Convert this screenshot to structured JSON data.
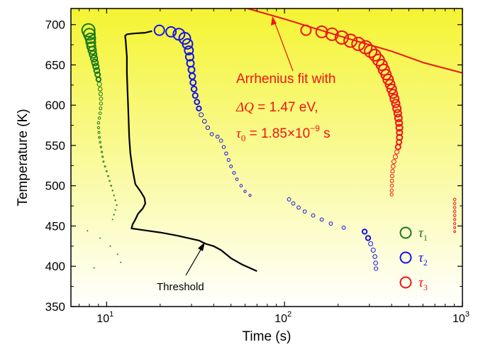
{
  "chart_data": {
    "type": "scatter",
    "xlabel": "Time (s)",
    "ylabel": "Temperature (K)",
    "xscale": "log",
    "xlim": [
      6.3,
      1000
    ],
    "ylim": [
      350,
      720
    ],
    "x_ticks": [
      10,
      100,
      1000
    ],
    "x_tick_labels": [
      {
        "base": "10",
        "exp": "1"
      },
      {
        "base": "10",
        "exp": "2"
      },
      {
        "base": "10",
        "exp": "3"
      }
    ],
    "y_ticks": [
      350,
      400,
      450,
      500,
      550,
      600,
      650,
      700
    ],
    "y_tick_labels": [
      "350",
      "400",
      "450",
      "500",
      "550",
      "600",
      "650",
      "700"
    ],
    "grid": false,
    "background_gradient": [
      "#f4f432",
      "#ffffff"
    ],
    "legend_position": "bottom-right",
    "series": [
      {
        "name": "τ1",
        "legend_symbol": "τ",
        "legend_sub": "1",
        "color": "#1a7a1a",
        "points": [
          [
            7.9,
            693,
            9
          ],
          [
            8.0,
            688,
            8
          ],
          [
            8.1,
            683,
            7
          ],
          [
            8.15,
            678,
            6.5
          ],
          [
            8.2,
            673,
            6
          ],
          [
            8.3,
            668,
            5.5
          ],
          [
            8.4,
            663,
            5
          ],
          [
            8.5,
            658,
            4.7
          ],
          [
            8.6,
            653,
            4.4
          ],
          [
            8.7,
            648,
            4.1
          ],
          [
            8.8,
            643,
            3.8
          ],
          [
            8.9,
            638,
            3.5
          ],
          [
            9.0,
            632,
            3.2
          ],
          [
            9.1,
            626,
            3.0
          ],
          [
            9.2,
            620,
            2.8
          ],
          [
            9.25,
            614,
            2.6
          ],
          [
            9.3,
            608,
            2.4
          ],
          [
            9.3,
            602,
            2.2
          ],
          [
            9.25,
            596,
            2.0
          ],
          [
            9.2,
            590,
            1.9
          ],
          [
            9.1,
            584,
            1.8
          ],
          [
            9.0,
            578,
            1.7
          ],
          [
            9.0,
            572,
            1.6
          ],
          [
            9.05,
            566,
            1.5
          ],
          [
            9.1,
            560,
            1.4
          ],
          [
            9.2,
            554,
            1.3
          ],
          [
            9.3,
            548,
            1.2
          ],
          [
            9.4,
            542,
            1.1
          ],
          [
            9.5,
            536,
            1.1
          ],
          [
            9.6,
            530,
            1.0
          ],
          [
            9.8,
            524,
            1.0
          ],
          [
            10.0,
            518,
            0.9
          ],
          [
            10.2,
            512,
            0.9
          ],
          [
            10.4,
            506,
            0.8
          ],
          [
            10.6,
            500,
            0.8
          ],
          [
            10.8,
            494,
            0.7
          ],
          [
            11.0,
            488,
            0.7
          ],
          [
            11.2,
            482,
            0.7
          ],
          [
            11.4,
            476,
            0.6
          ],
          [
            11.2,
            470,
            0.6
          ],
          [
            11.0,
            464,
            0.6
          ],
          [
            10.8,
            458,
            0.5
          ],
          [
            7.8,
            444,
            0.5
          ],
          [
            9.2,
            435,
            0.5
          ],
          [
            10.5,
            425,
            0.5
          ],
          [
            11.5,
            415,
            0.5
          ],
          [
            12.0,
            405,
            0.5
          ],
          [
            8.5,
            398,
            0.5
          ]
        ]
      },
      {
        "name": "τ2",
        "legend_symbol": "τ",
        "legend_sub": "2",
        "color": "#1414e6",
        "points": [
          [
            19.8,
            693,
            7
          ],
          [
            23.0,
            691,
            7
          ],
          [
            25.5,
            688,
            8
          ],
          [
            27.5,
            683,
            8
          ],
          [
            28.5,
            676,
            7
          ],
          [
            29.0,
            668,
            6
          ],
          [
            29.3,
            660,
            5.5
          ],
          [
            29.6,
            652,
            5
          ],
          [
            30.0,
            644,
            4.5
          ],
          [
            30.3,
            636,
            4.2
          ],
          [
            30.6,
            628,
            4.0
          ],
          [
            31.0,
            620,
            3.8
          ],
          [
            31.5,
            612,
            3.6
          ],
          [
            32.2,
            604,
            3.4
          ],
          [
            33.0,
            596,
            3.2
          ],
          [
            34.0,
            588,
            3.0
          ],
          [
            35.5,
            580,
            2.8
          ],
          [
            37.0,
            572,
            2.6
          ],
          [
            39.0,
            564,
            2.4
          ],
          [
            42.0,
            561,
            2.3
          ],
          [
            44.0,
            556,
            2.3
          ],
          [
            45.5,
            548,
            2.2
          ],
          [
            47.0,
            540,
            2.2
          ],
          [
            48.5,
            532,
            2.1
          ],
          [
            50.0,
            524,
            2.0
          ],
          [
            52.0,
            516,
            2.0
          ],
          [
            54.0,
            508,
            1.9
          ],
          [
            57.0,
            500,
            1.8
          ],
          [
            60.0,
            493,
            1.7
          ],
          [
            64.0,
            488,
            1.6
          ],
          [
            106,
            483,
            2.4
          ],
          [
            112,
            478,
            2.4
          ],
          [
            120,
            473,
            2.4
          ],
          [
            130,
            468,
            2.4
          ],
          [
            145,
            463,
            2.4
          ],
          [
            162,
            458,
            2.4
          ],
          [
            182,
            453,
            2.4
          ],
          [
            215,
            448,
            2.4
          ],
          [
            282,
            443,
            3.2
          ],
          [
            295,
            435,
            3.2
          ],
          [
            305,
            428,
            3.0
          ],
          [
            315,
            420,
            3.0
          ],
          [
            322,
            412,
            2.8
          ],
          [
            325,
            404,
            2.8
          ],
          [
            327,
            397,
            2.6
          ]
        ]
      },
      {
        "name": "τ3",
        "legend_symbol": "τ",
        "legend_sub": "3",
        "color": "#f01414",
        "points": [
          [
            132,
            693,
            7
          ],
          [
            162,
            691,
            8
          ],
          [
            185,
            688,
            8.5
          ],
          [
            210,
            684,
            9
          ],
          [
            235,
            680,
            9
          ],
          [
            260,
            676,
            9
          ],
          [
            285,
            672,
            9
          ],
          [
            305,
            667,
            8.5
          ],
          [
            322,
            662,
            8
          ],
          [
            338,
            656,
            8
          ],
          [
            352,
            650,
            7.5
          ],
          [
            362,
            644,
            7.5
          ],
          [
            372,
            638,
            7
          ],
          [
            382,
            632,
            7
          ],
          [
            392,
            626,
            6.5
          ],
          [
            400,
            620,
            6.5
          ],
          [
            408,
            614,
            6
          ],
          [
            415,
            608,
            6
          ],
          [
            422,
            602,
            5.5
          ],
          [
            428,
            596,
            5.5
          ],
          [
            433,
            590,
            5
          ],
          [
            437,
            584,
            5
          ],
          [
            440,
            578,
            4.5
          ],
          [
            442,
            572,
            4.5
          ],
          [
            443,
            566,
            4
          ],
          [
            443,
            560,
            4
          ],
          [
            440,
            554,
            3.5
          ],
          [
            435,
            548,
            3.5
          ],
          [
            428,
            542,
            3
          ],
          [
            420,
            536,
            3
          ],
          [
            412,
            530,
            3
          ],
          [
            408,
            524,
            2.8
          ],
          [
            405,
            518,
            2.6
          ],
          [
            403,
            512,
            2.5
          ],
          [
            402,
            506,
            2.4
          ],
          [
            401,
            500,
            2.3
          ],
          [
            400,
            494,
            2.2
          ],
          [
            400,
            489,
            2.1
          ],
          [
            905,
            483,
            1.8
          ],
          [
            905,
            478,
            1.8
          ],
          [
            905,
            473,
            1.8
          ],
          [
            905,
            468,
            1.8
          ],
          [
            905,
            463,
            1.8
          ],
          [
            905,
            458,
            1.6
          ],
          [
            905,
            453,
            1.6
          ],
          [
            905,
            448,
            1.5
          ],
          [
            905,
            443,
            1.4
          ]
        ]
      }
    ],
    "lines": [
      {
        "name": "Threshold",
        "color": "#000000",
        "points": [
          [
            18.0,
            692
          ],
          [
            16.5,
            690
          ],
          [
            14.2,
            689
          ],
          [
            13.0,
            688
          ],
          [
            12.7,
            686
          ],
          [
            12.8,
            680
          ],
          [
            13.0,
            660
          ],
          [
            13.0,
            640
          ],
          [
            13.1,
            620
          ],
          [
            13.2,
            600
          ],
          [
            13.3,
            580
          ],
          [
            13.4,
            560
          ],
          [
            13.6,
            540
          ],
          [
            14.0,
            520
          ],
          [
            14.5,
            502
          ],
          [
            15.6,
            492
          ],
          [
            16.3,
            485
          ],
          [
            16.5,
            478
          ],
          [
            16.0,
            472
          ],
          [
            15.0,
            465
          ],
          [
            14.5,
            458
          ],
          [
            14.0,
            452
          ],
          [
            13.8,
            447
          ],
          [
            16.0,
            445
          ],
          [
            20.0,
            442
          ],
          [
            25.0,
            438
          ],
          [
            30.0,
            434
          ],
          [
            33.0,
            432
          ],
          [
            36.0,
            428
          ],
          [
            40.0,
            425
          ],
          [
            44.0,
            420
          ],
          [
            50.0,
            410
          ],
          [
            58.0,
            402
          ],
          [
            70.0,
            394
          ]
        ]
      },
      {
        "name": "Arrhenius fit",
        "color": "#f01414",
        "points": [
          [
            62,
            720
          ],
          [
            100,
            707
          ],
          [
            150,
            695
          ],
          [
            250,
            680
          ],
          [
            400,
            667
          ],
          [
            600,
            653
          ],
          [
            1000,
            640
          ]
        ]
      }
    ],
    "annotations": {
      "threshold_label": "Threshold",
      "arrhenius_line1": "Arrhenius fit with",
      "arrhenius_dq_sym": "ΔQ",
      "arrhenius_dq_val": " = 1.47 eV,",
      "arrhenius_tau_sym": "τ",
      "arrhenius_tau_sub": "0",
      "arrhenius_tau_val": " = 1.85×10",
      "arrhenius_tau_exp": "−9",
      "arrhenius_tau_unit": " s"
    }
  }
}
